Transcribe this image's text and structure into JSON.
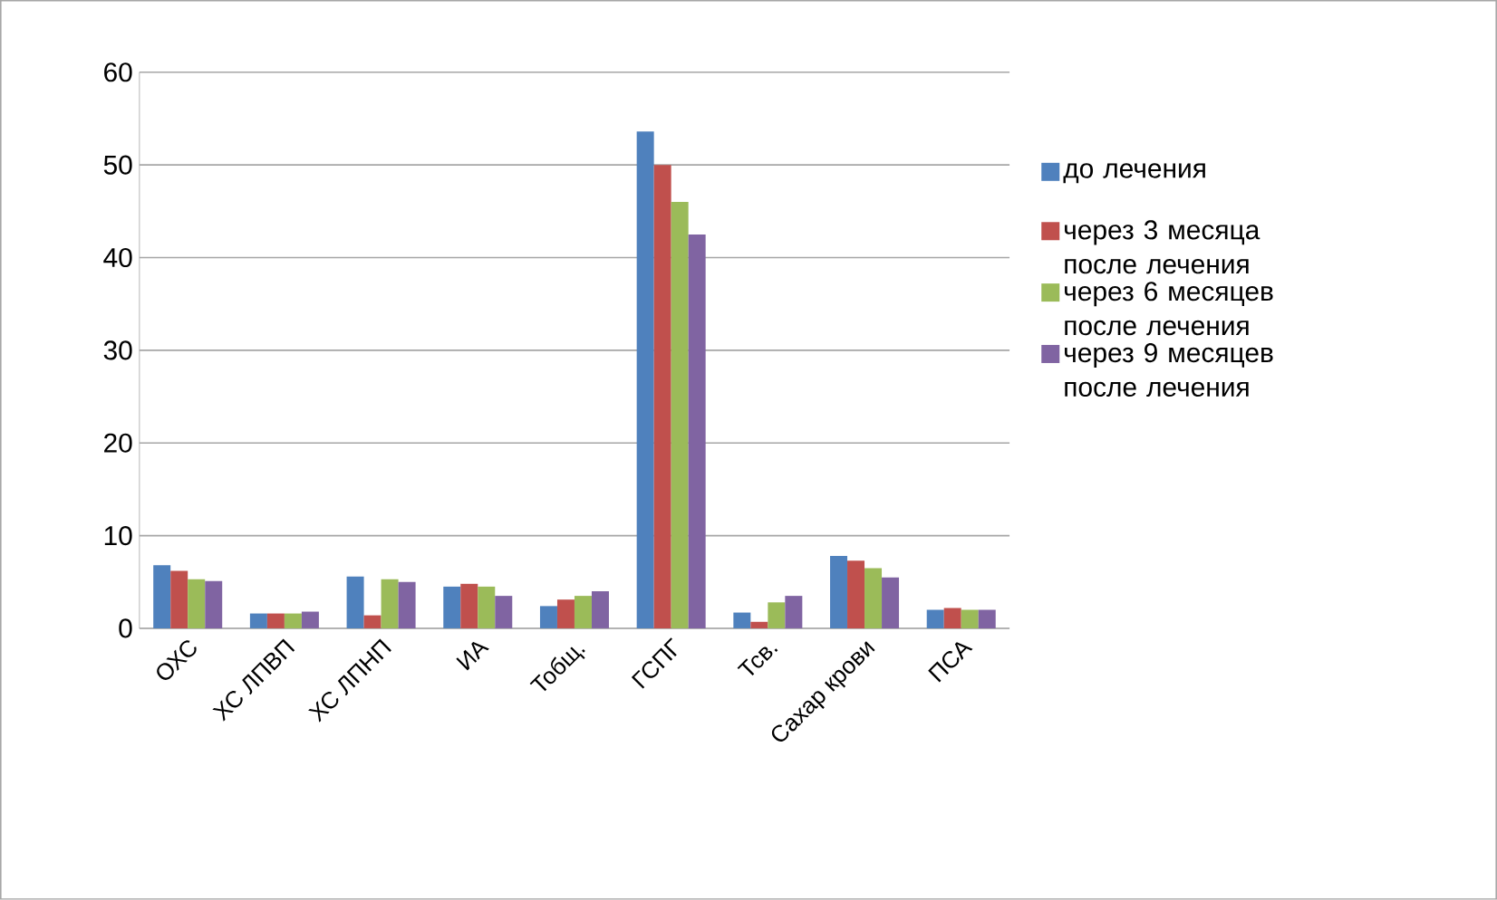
{
  "chart_data": {
    "type": "bar",
    "categories": [
      "ОХС",
      "ХС ЛПВП",
      "ХС ЛПНП",
      "ИА",
      "Тобщ.",
      "ГСПГ",
      "Тсв.",
      "Сахар крови",
      "ПСА"
    ],
    "series": [
      {
        "name": "до лечения",
        "color": "#4f81bd",
        "values": [
          6.8,
          1.6,
          5.6,
          4.5,
          2.4,
          53.6,
          1.7,
          7.8,
          2.0
        ]
      },
      {
        "name": "через 3 месяца после лечения",
        "color": "#c0504d",
        "values": [
          6.2,
          1.6,
          1.4,
          4.8,
          3.1,
          50.0,
          0.7,
          7.3,
          2.2
        ]
      },
      {
        "name": "через 6 месяцев после лечения",
        "color": "#9bbb59",
        "values": [
          5.3,
          1.6,
          5.3,
          4.5,
          3.5,
          46.0,
          2.8,
          6.5,
          2.0
        ]
      },
      {
        "name": "через 9 месяцев после лечения",
        "color": "#8064a2",
        "values": [
          5.1,
          1.8,
          5.0,
          3.5,
          4.0,
          42.5,
          3.5,
          5.5,
          2.0
        ]
      }
    ],
    "ylim": [
      0,
      60
    ],
    "yticks": [
      0,
      10,
      20,
      30,
      40,
      50,
      60
    ],
    "grid": "y",
    "legend": "right"
  }
}
